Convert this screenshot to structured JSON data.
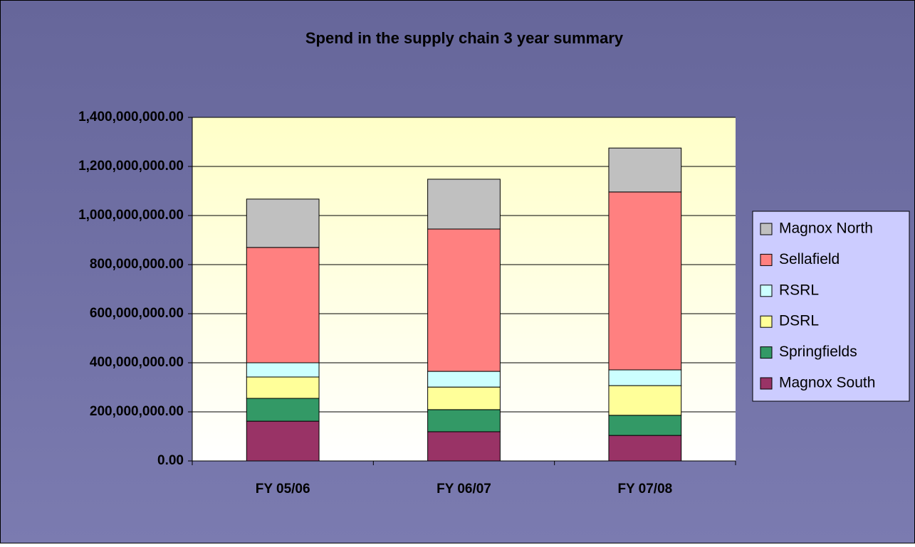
{
  "chart_data": {
    "type": "stacked-bar",
    "title": "Spend in the supply chain 3 year summary",
    "categories": [
      "FY 05/06",
      "FY 06/07",
      "FY 07/08"
    ],
    "series": [
      {
        "name": "Magnox South",
        "color": "#993366",
        "values": [
          162000000,
          119000000,
          104000000
        ]
      },
      {
        "name": "Springfields",
        "color": "#339966",
        "values": [
          93000000,
          90000000,
          82000000
        ]
      },
      {
        "name": "DSRL",
        "color": "#ffff99",
        "values": [
          87000000,
          92000000,
          121000000
        ]
      },
      {
        "name": "RSRL",
        "color": "#ccffff",
        "values": [
          58000000,
          64000000,
          64000000
        ]
      },
      {
        "name": "Sellafield",
        "color": "#ff8080",
        "values": [
          470000000,
          580000000,
          725000000
        ]
      },
      {
        "name": "Magnox North",
        "color": "#c0c0c0",
        "values": [
          197000000,
          203000000,
          179000000
        ]
      }
    ],
    "ylim": [
      0,
      1400000000
    ],
    "yticks": [
      {
        "value": 0,
        "label": "0.00"
      },
      {
        "value": 200000000,
        "label": "200,000,000.00"
      },
      {
        "value": 400000000,
        "label": "400,000,000.00"
      },
      {
        "value": 600000000,
        "label": "600,000,000.00"
      },
      {
        "value": 800000000,
        "label": "800,000,000.00"
      },
      {
        "value": 1000000000,
        "label": "1,000,000,000.00"
      },
      {
        "value": 1200000000,
        "label": "1,200,000,000.00"
      },
      {
        "value": 1400000000,
        "label": "1,400,000,000.00"
      }
    ],
    "grid": true,
    "legend": "right"
  }
}
